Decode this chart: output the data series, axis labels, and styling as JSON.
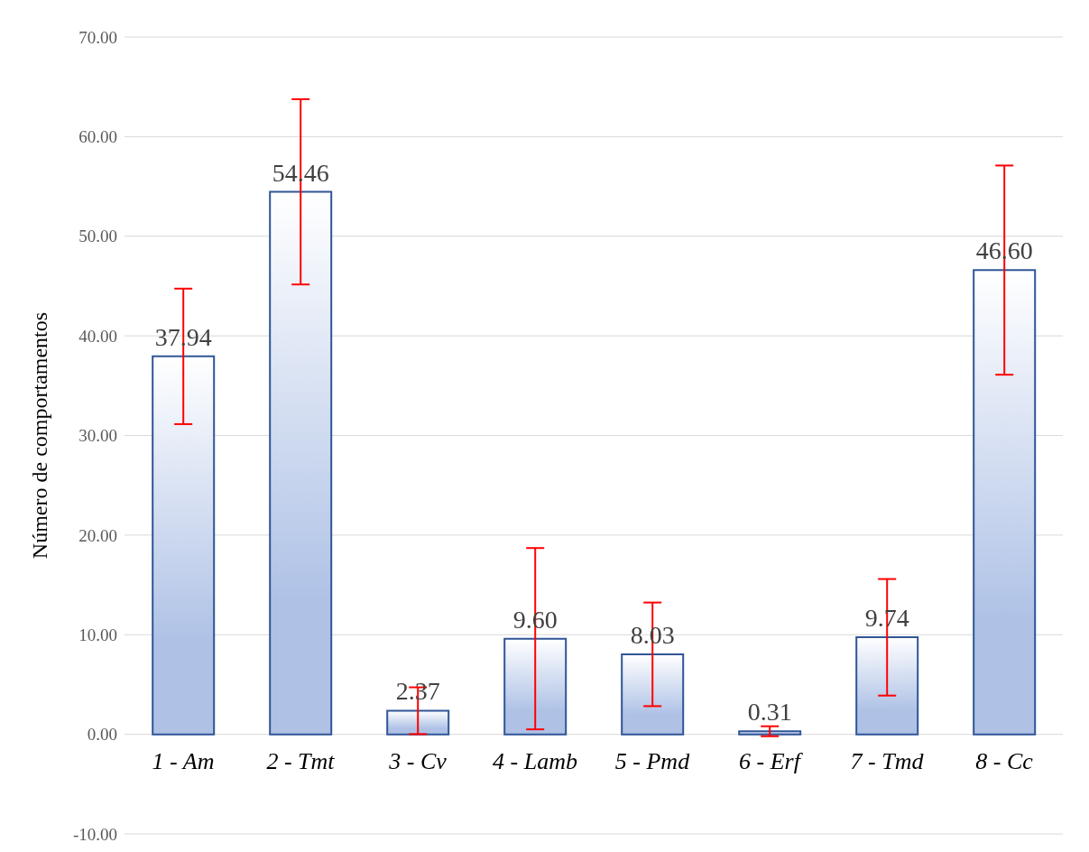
{
  "chart_data": {
    "type": "bar",
    "ylabel": "Número de comportamentos",
    "categories": [
      "1 - Am",
      "2 - Tmt",
      "3 - Cv",
      "4 - Lamb",
      "5 - Pmd",
      "6 - Erf",
      "7 - Tmd",
      "8 - Cc"
    ],
    "values": [
      37.94,
      54.46,
      2.37,
      9.6,
      8.03,
      0.31,
      9.74,
      46.6
    ],
    "value_labels": [
      "37.94",
      "54.46",
      "2.37",
      "9.60",
      "8.03",
      "0.31",
      "9.74",
      "46.60"
    ],
    "errors": [
      6.8,
      9.3,
      2.35,
      9.1,
      5.2,
      0.5,
      5.85,
      10.5
    ],
    "color": "#2f5597",
    "ylim": [
      -10,
      70
    ],
    "yticks": [
      {
        "value": -10,
        "label": "-10.00"
      },
      {
        "value": 0,
        "label": "0.00"
      },
      {
        "value": 10,
        "label": "10.00"
      },
      {
        "value": 20,
        "label": "20.00"
      },
      {
        "value": 30,
        "label": "30.00"
      },
      {
        "value": 40,
        "label": "40.00"
      },
      {
        "value": 50,
        "label": "50.00"
      },
      {
        "value": 60,
        "label": "60.00"
      },
      {
        "value": 70,
        "label": "70.00"
      }
    ],
    "grid": "y",
    "legend": false
  }
}
